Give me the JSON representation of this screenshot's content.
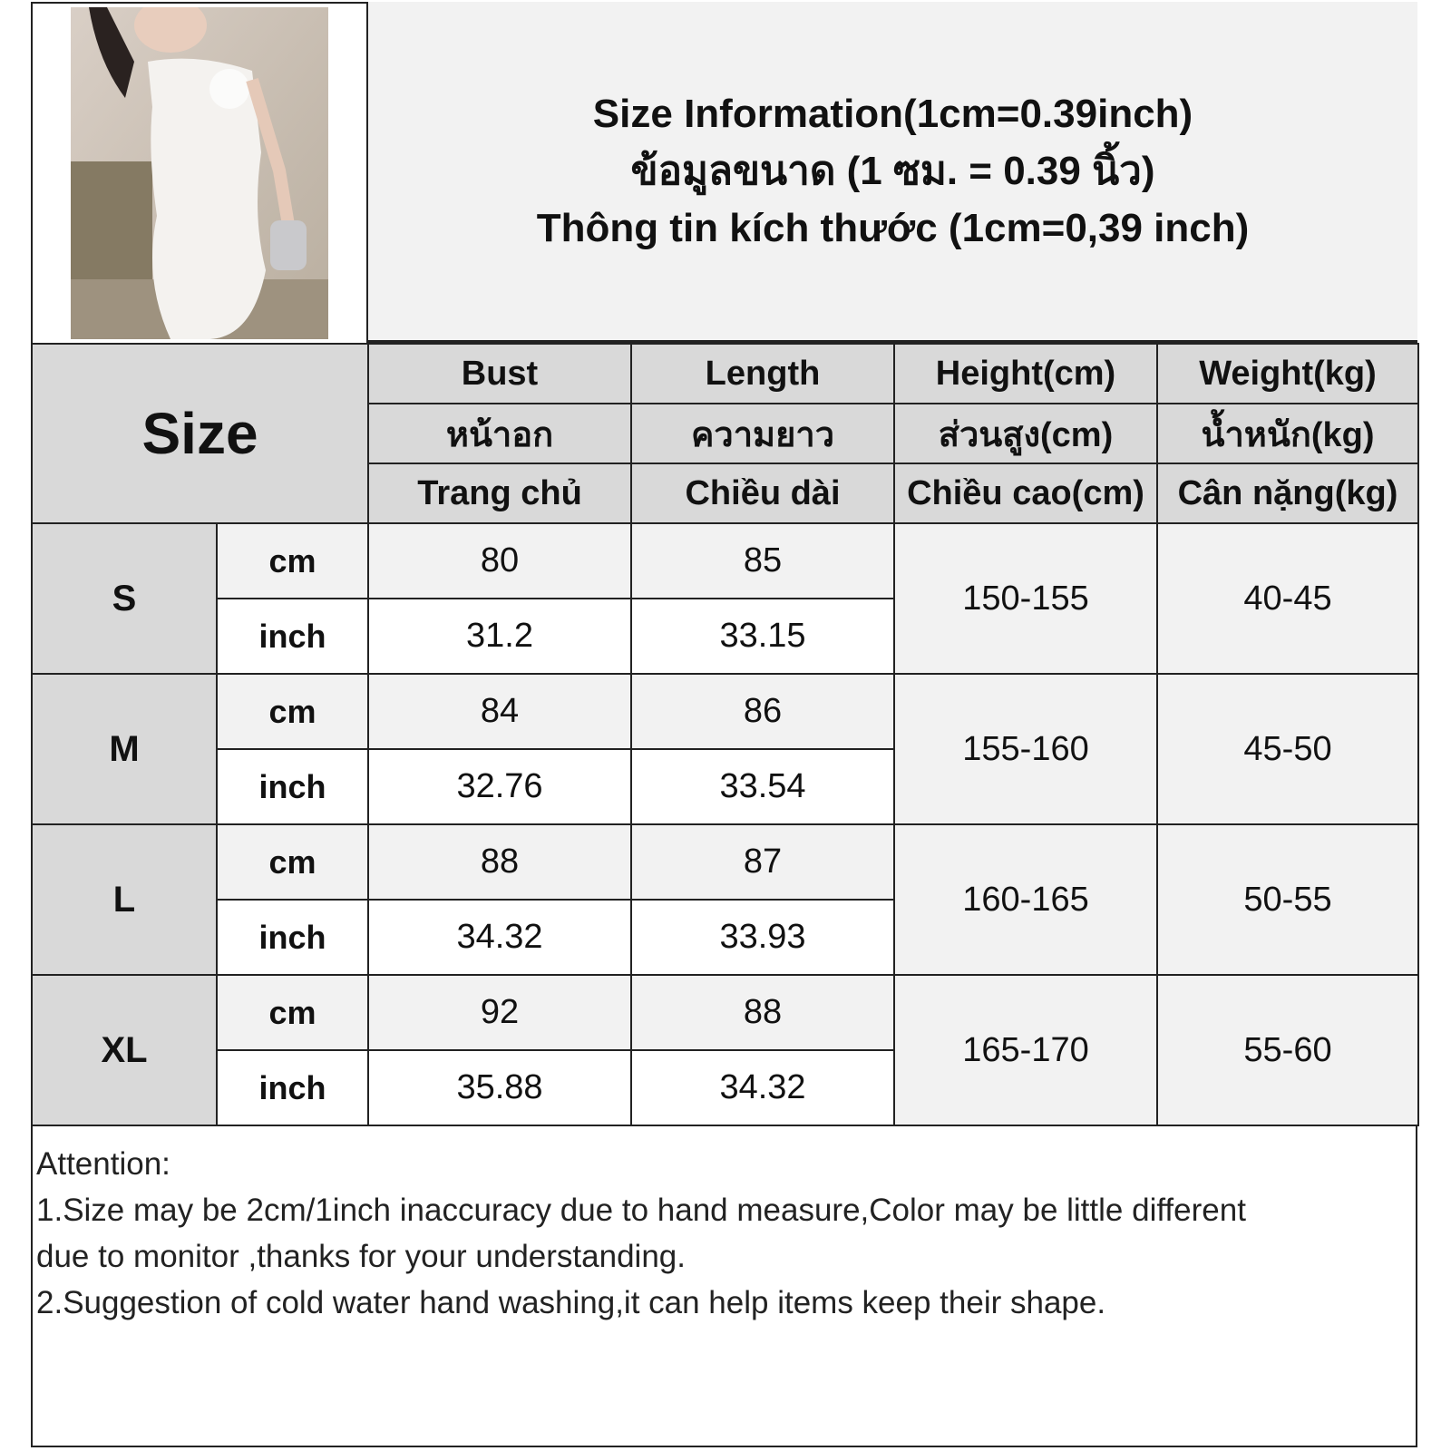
{
  "title": {
    "lines": [
      "Size Information(1cm=0.39inch)",
      "ข้อมูลขนาด (1 ซม. = 0.39 นิ้ว)",
      "Thông tin kích thước (1cm=0,39 inch)"
    ]
  },
  "table": {
    "size_label": "Size",
    "headers": [
      {
        "en": "Bust",
        "th": "หน้าอก",
        "vi": "Trang chủ"
      },
      {
        "en": "Length",
        "th": "ความยาว",
        "vi": "Chiều dài"
      },
      {
        "en": "Height(cm)",
        "th": "ส่วนสูง(cm)",
        "vi": "Chiều cao(cm)"
      },
      {
        "en": "Weight(kg)",
        "th": "น้ำหนัก(kg)",
        "vi": "Cân nặng(kg)"
      }
    ],
    "unit_cm": "cm",
    "unit_inch": "inch",
    "rows": [
      {
        "size": "S",
        "bust_cm": "80",
        "length_cm": "85",
        "bust_inch": "31.2",
        "length_inch": "33.15",
        "height": "150-155",
        "weight": "40-45"
      },
      {
        "size": "M",
        "bust_cm": "84",
        "length_cm": "86",
        "bust_inch": "32.76",
        "length_inch": "33.54",
        "height": "155-160",
        "weight": "45-50"
      },
      {
        "size": "L",
        "bust_cm": "88",
        "length_cm": "87",
        "bust_inch": "34.32",
        "length_inch": "33.93",
        "height": "160-165",
        "weight": "50-55"
      },
      {
        "size": "XL",
        "bust_cm": "92",
        "length_cm": "88",
        "bust_inch": "35.88",
        "length_inch": "34.32",
        "height": "165-170",
        "weight": "55-60"
      }
    ]
  },
  "notes": {
    "heading": "Attention:",
    "lines": [
      "1.Size may be 2cm/1inch inaccuracy due to hand measure,Color may be little different",
      "due to monitor ,thanks for your understanding.",
      "2.Suggestion of cold water hand washing,it can help items keep their shape."
    ]
  }
}
